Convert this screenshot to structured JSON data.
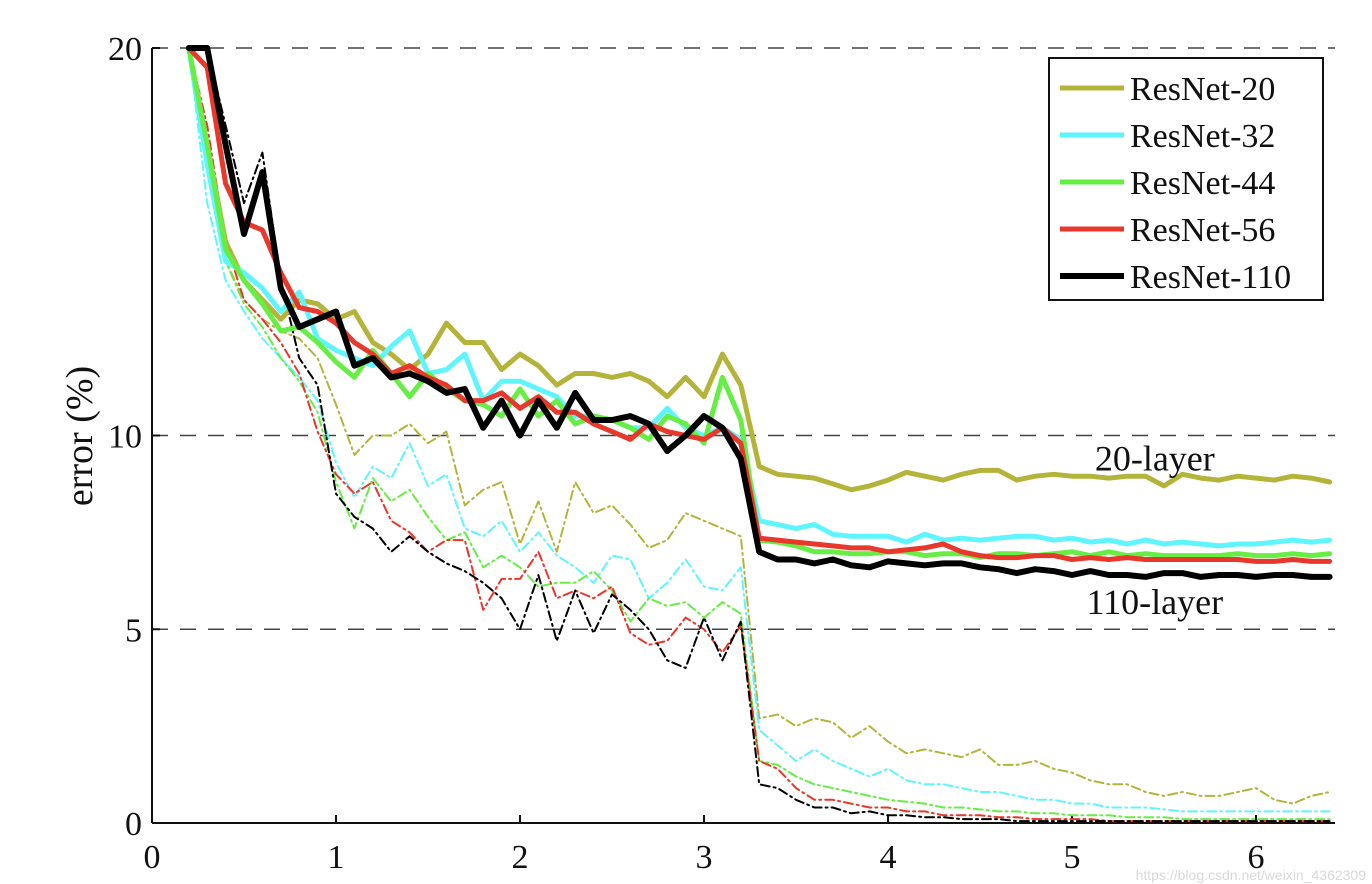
{
  "chart_data": {
    "type": "line",
    "ylabel": "error (%)",
    "xlabel": "",
    "xlim": [
      0,
      6.4
    ],
    "ylim": [
      0,
      20
    ],
    "x_ticks": [
      0,
      1,
      2,
      3,
      4,
      5,
      6
    ],
    "y_ticks": [
      0,
      5,
      10,
      20
    ],
    "grid": "horizontal dashed at 5, 10, 20",
    "legend_position": "top-right",
    "annotations": [
      {
        "text": "20-layer",
        "x": 5.45,
        "y": 9.1
      },
      {
        "text": "110-layer",
        "x": 5.45,
        "y": 5.4
      }
    ],
    "watermark": "https://blog.csdn.net/weixin_4362309",
    "x": [
      0.2,
      0.3,
      0.4,
      0.5,
      0.6,
      0.7,
      0.8,
      0.9,
      1.0,
      1.1,
      1.2,
      1.3,
      1.4,
      1.5,
      1.6,
      1.7,
      1.8,
      1.9,
      2.0,
      2.1,
      2.2,
      2.3,
      2.4,
      2.5,
      2.6,
      2.7,
      2.8,
      2.9,
      3.0,
      3.1,
      3.2,
      3.3,
      3.4,
      3.5,
      3.6,
      3.7,
      3.8,
      3.9,
      4.0,
      4.1,
      4.2,
      4.3,
      4.4,
      4.5,
      4.6,
      4.7,
      4.8,
      4.9,
      5.0,
      5.1,
      5.2,
      5.3,
      5.4,
      5.5,
      5.6,
      5.7,
      5.8,
      5.9,
      6.0,
      6.1,
      6.2,
      6.3,
      6.4
    ],
    "series": [
      {
        "name": "ResNet-20",
        "color": "#b5b43a",
        "style": "test",
        "values": [
          20.0,
          17.5,
          15.0,
          14.0,
          13.5,
          13.0,
          13.5,
          13.4,
          13.0,
          13.2,
          12.4,
          12.1,
          11.7,
          12.1,
          12.9,
          12.4,
          12.4,
          11.7,
          12.1,
          11.8,
          11.3,
          11.6,
          11.6,
          11.5,
          11.6,
          11.4,
          11.0,
          11.5,
          11.0,
          12.1,
          11.3,
          9.2,
          9.0,
          8.95,
          8.9,
          8.75,
          8.6,
          8.7,
          8.85,
          9.05,
          8.95,
          8.85,
          9.0,
          9.1,
          9.1,
          8.85,
          8.95,
          9.0,
          8.95,
          8.95,
          8.9,
          8.95,
          8.95,
          8.7,
          9.0,
          8.9,
          8.85,
          8.95,
          8.9,
          8.85,
          8.95,
          8.9,
          8.8
        ]
      },
      {
        "name": "ResNet-32",
        "color": "#5ff5ff",
        "style": "test",
        "values": [
          20.0,
          17.0,
          14.5,
          14.2,
          13.8,
          13.2,
          13.7,
          12.5,
          12.2,
          12.0,
          11.8,
          12.3,
          12.7,
          11.6,
          11.7,
          12.1,
          10.9,
          11.4,
          11.4,
          11.2,
          11.0,
          10.5,
          10.5,
          10.4,
          10.2,
          10.2,
          10.7,
          10.2,
          10.0,
          10.2,
          9.9,
          7.8,
          7.7,
          7.6,
          7.7,
          7.45,
          7.4,
          7.4,
          7.4,
          7.25,
          7.45,
          7.3,
          7.35,
          7.3,
          7.35,
          7.4,
          7.4,
          7.3,
          7.35,
          7.25,
          7.3,
          7.2,
          7.3,
          7.2,
          7.25,
          7.2,
          7.15,
          7.2,
          7.2,
          7.25,
          7.3,
          7.25,
          7.3
        ]
      },
      {
        "name": "ResNet-44",
        "color": "#66ee44",
        "style": "test",
        "values": [
          20.0,
          17.5,
          14.8,
          14.0,
          13.4,
          12.7,
          12.8,
          12.4,
          11.9,
          11.5,
          12.2,
          11.6,
          11.0,
          11.6,
          11.2,
          10.9,
          10.8,
          10.5,
          11.2,
          10.5,
          10.9,
          10.3,
          10.5,
          10.4,
          10.2,
          9.9,
          10.5,
          10.3,
          9.8,
          11.5,
          10.4,
          7.3,
          7.25,
          7.15,
          7.0,
          7.0,
          6.95,
          6.95,
          7.0,
          7.0,
          6.9,
          6.95,
          6.95,
          6.85,
          6.95,
          6.95,
          6.9,
          6.95,
          7.0,
          6.9,
          7.0,
          6.9,
          6.95,
          6.9,
          6.9,
          6.9,
          6.9,
          6.95,
          6.9,
          6.9,
          6.95,
          6.9,
          6.95
        ]
      },
      {
        "name": "ResNet-56",
        "color": "#e8372b",
        "style": "test",
        "values": [
          20.0,
          19.5,
          16.5,
          15.5,
          15.3,
          14.2,
          13.3,
          13.2,
          12.9,
          12.4,
          12.1,
          11.6,
          11.8,
          11.5,
          11.3,
          10.9,
          10.9,
          11.1,
          10.7,
          11.0,
          10.6,
          10.6,
          10.3,
          10.1,
          9.9,
          10.3,
          10.1,
          10.0,
          9.9,
          10.2,
          9.8,
          7.35,
          7.3,
          7.25,
          7.2,
          7.15,
          7.1,
          7.1,
          7.0,
          7.05,
          7.1,
          7.2,
          7.0,
          6.9,
          6.85,
          6.85,
          6.9,
          6.9,
          6.8,
          6.85,
          6.8,
          6.85,
          6.8,
          6.8,
          6.8,
          6.8,
          6.8,
          6.8,
          6.75,
          6.75,
          6.8,
          6.75,
          6.75
        ]
      },
      {
        "name": "ResNet-110",
        "color": "#000000",
        "style": "test",
        "values": [
          20.0,
          20.0,
          17.5,
          15.2,
          16.8,
          13.8,
          12.8,
          13.0,
          13.2,
          11.8,
          12.0,
          11.5,
          11.6,
          11.4,
          11.1,
          11.2,
          10.2,
          10.9,
          10.0,
          10.9,
          10.2,
          11.1,
          10.4,
          10.4,
          10.5,
          10.3,
          9.6,
          10.0,
          10.5,
          10.2,
          9.4,
          7.0,
          6.8,
          6.8,
          6.7,
          6.8,
          6.65,
          6.6,
          6.75,
          6.7,
          6.65,
          6.7,
          6.7,
          6.6,
          6.55,
          6.45,
          6.55,
          6.5,
          6.4,
          6.5,
          6.4,
          6.4,
          6.35,
          6.45,
          6.45,
          6.35,
          6.4,
          6.4,
          6.35,
          6.4,
          6.4,
          6.35,
          6.35
        ]
      },
      {
        "name": "ResNet-20",
        "color": "#b5b43a",
        "style": "train",
        "values": [
          20.0,
          17.0,
          14.5,
          13.5,
          13.0,
          12.7,
          12.5,
          12.0,
          10.8,
          9.5,
          10.0,
          10.0,
          10.3,
          9.8,
          10.1,
          8.2,
          8.6,
          8.8,
          7.2,
          8.3,
          7.0,
          8.8,
          8.0,
          8.2,
          7.7,
          7.1,
          7.3,
          8.0,
          7.8,
          7.6,
          7.4,
          2.7,
          2.8,
          2.5,
          2.7,
          2.6,
          2.2,
          2.5,
          2.1,
          1.8,
          1.9,
          1.8,
          1.7,
          1.9,
          1.5,
          1.5,
          1.6,
          1.4,
          1.3,
          1.1,
          1.0,
          1.0,
          0.8,
          0.7,
          0.8,
          0.7,
          0.7,
          0.8,
          0.9,
          0.6,
          0.5,
          0.7,
          0.8
        ]
      },
      {
        "name": "ResNet-32",
        "color": "#5ff5ff",
        "style": "train",
        "values": [
          20.0,
          16.0,
          14.0,
          13.2,
          12.5,
          12.0,
          11.5,
          10.9,
          9.3,
          8.4,
          9.2,
          8.9,
          9.8,
          8.7,
          9.0,
          7.6,
          7.4,
          7.8,
          7.0,
          7.5,
          6.9,
          6.6,
          6.2,
          6.9,
          6.8,
          5.8,
          6.2,
          6.8,
          6.1,
          6.0,
          6.6,
          2.4,
          2.0,
          1.6,
          1.9,
          1.6,
          1.4,
          1.2,
          1.4,
          1.1,
          1.0,
          1.0,
          0.9,
          0.8,
          0.8,
          0.7,
          0.6,
          0.6,
          0.5,
          0.5,
          0.4,
          0.4,
          0.4,
          0.35,
          0.3,
          0.3,
          0.3,
          0.3,
          0.3,
          0.3,
          0.3,
          0.3,
          0.3
        ]
      },
      {
        "name": "ResNet-44",
        "color": "#66ee44",
        "style": "train",
        "values": [
          20.0,
          17.0,
          14.5,
          13.4,
          12.8,
          12.0,
          11.4,
          10.6,
          8.8,
          7.6,
          8.9,
          8.3,
          8.6,
          7.9,
          7.3,
          7.5,
          6.6,
          6.9,
          6.6,
          6.1,
          6.2,
          6.2,
          6.5,
          6.0,
          5.2,
          5.8,
          5.6,
          5.7,
          5.3,
          5.7,
          5.4,
          1.6,
          1.5,
          1.2,
          1.0,
          0.9,
          0.8,
          0.7,
          0.6,
          0.55,
          0.5,
          0.4,
          0.4,
          0.35,
          0.3,
          0.3,
          0.25,
          0.25,
          0.2,
          0.2,
          0.2,
          0.15,
          0.15,
          0.15,
          0.1,
          0.1,
          0.1,
          0.1,
          0.1,
          0.1,
          0.1,
          0.1,
          0.1
        ]
      },
      {
        "name": "ResNet-56",
        "color": "#e8372b",
        "style": "train",
        "values": [
          20.0,
          18.0,
          15.0,
          13.5,
          13.0,
          12.4,
          11.6,
          10.1,
          9.0,
          8.5,
          8.8,
          7.8,
          7.5,
          7.0,
          7.3,
          7.3,
          5.5,
          6.3,
          6.3,
          7.0,
          5.8,
          6.0,
          5.8,
          6.1,
          4.9,
          4.6,
          4.7,
          5.3,
          5.0,
          4.4,
          5.1,
          1.6,
          1.4,
          0.9,
          0.6,
          0.6,
          0.5,
          0.4,
          0.4,
          0.3,
          0.3,
          0.2,
          0.2,
          0.2,
          0.15,
          0.15,
          0.1,
          0.1,
          0.1,
          0.1,
          0.05,
          0.05,
          0.05,
          0.05,
          0.05,
          0.05,
          0.05,
          0.05,
          0.05,
          0.05,
          0.05,
          0.05,
          0.05
        ]
      },
      {
        "name": "ResNet-110",
        "color": "#000000",
        "style": "train",
        "values": [
          20.0,
          20.0,
          18.0,
          16.0,
          17.3,
          14.0,
          12.0,
          11.3,
          8.5,
          7.9,
          7.6,
          7.0,
          7.4,
          7.0,
          6.7,
          6.5,
          6.2,
          5.8,
          5.0,
          6.4,
          4.7,
          6.0,
          4.9,
          5.9,
          5.5,
          5.0,
          4.2,
          4.0,
          5.3,
          4.2,
          5.2,
          1.0,
          0.9,
          0.6,
          0.4,
          0.4,
          0.25,
          0.3,
          0.2,
          0.2,
          0.15,
          0.15,
          0.1,
          0.1,
          0.1,
          0.05,
          0.05,
          0.05,
          0.05,
          0.05,
          0.05,
          0.05,
          0.05,
          0.05,
          0.05,
          0.05,
          0.05,
          0.05,
          0.05,
          0.05,
          0.05,
          0.05,
          0.05
        ]
      }
    ]
  }
}
